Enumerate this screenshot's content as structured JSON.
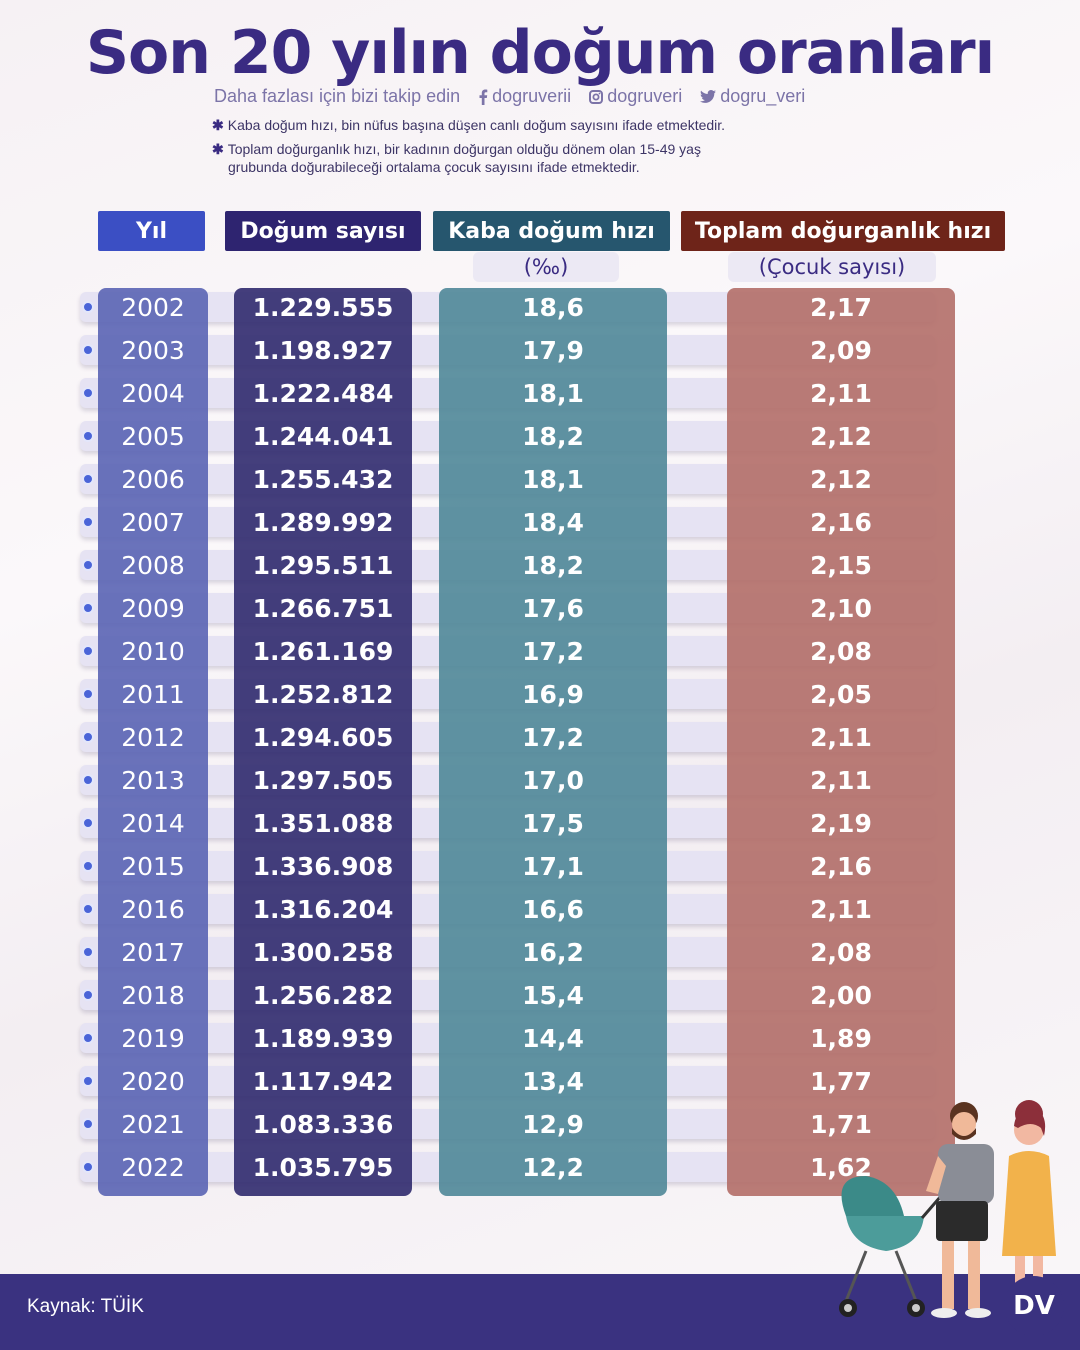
{
  "title": "Son 20 yılın doğum oranları",
  "follow": {
    "text": "Daha fazlası için bizi takip edin",
    "facebook": "dogruverii",
    "instagram": "dogruveri",
    "twitter": "dogru_veri"
  },
  "notes": {
    "star": "✱",
    "note1": "Kaba doğum hızı, bin nüfus başına düşen canlı doğum sayısını ifade etmektedir.",
    "note2_line1": "Toplam doğurganlık hızı, bir kadının doğurgan olduğu dönem olan 15-49 yaş",
    "note2_line2": "grubunda doğurabileceği ortalama çocuk sayısını ifade etmektedir."
  },
  "colors": {
    "year": "#3b4fc4",
    "births": "#2e2470",
    "crude": "#26566e",
    "tfr": "#6e2419",
    "year_col": "#5a64b4",
    "births_col": "#302a6e",
    "crude_col": "#4f8798",
    "tfr_col": "#b26e68"
  },
  "chart_data": {
    "type": "table",
    "title": "Son 20 yılın doğum oranları",
    "columns": [
      "Yıl",
      "Doğum sayısı",
      "Kaba doğum hızı",
      "Toplam doğurganlık hızı"
    ],
    "units": [
      "",
      "",
      "(‰)",
      "(Çocuk sayısı)"
    ],
    "rows": [
      [
        "2002",
        "1.229.555",
        "18,6",
        "2,17"
      ],
      [
        "2003",
        "1.198.927",
        "17,9",
        "2,09"
      ],
      [
        "2004",
        "1.222.484",
        "18,1",
        "2,11"
      ],
      [
        "2005",
        "1.244.041",
        "18,2",
        "2,12"
      ],
      [
        "2006",
        "1.255.432",
        "18,1",
        "2,12"
      ],
      [
        "2007",
        "1.289.992",
        "18,4",
        "2,16"
      ],
      [
        "2008",
        "1.295.511",
        "18,2",
        "2,15"
      ],
      [
        "2009",
        "1.266.751",
        "17,6",
        "2,10"
      ],
      [
        "2010",
        "1.261.169",
        "17,2",
        "2,08"
      ],
      [
        "2011",
        "1.252.812",
        "16,9",
        "2,05"
      ],
      [
        "2012",
        "1.294.605",
        "17,2",
        "2,11"
      ],
      [
        "2013",
        "1.297.505",
        "17,0",
        "2,11"
      ],
      [
        "2014",
        "1.351.088",
        "17,5",
        "2,19"
      ],
      [
        "2015",
        "1.336.908",
        "17,1",
        "2,16"
      ],
      [
        "2016",
        "1.316.204",
        "16,6",
        "2,11"
      ],
      [
        "2017",
        "1.300.258",
        "16,2",
        "2,08"
      ],
      [
        "2018",
        "1.256.282",
        "15,4",
        "2,00"
      ],
      [
        "2019",
        "1.189.939",
        "14,4",
        "1,89"
      ],
      [
        "2020",
        "1.117.942",
        "13,4",
        "1,77"
      ],
      [
        "2021",
        "1.083.336",
        "12,9",
        "1,71"
      ],
      [
        "2022",
        "1.035.795",
        "12,2",
        "1,62"
      ]
    ]
  },
  "source": "Kaynak: TÜİK",
  "logo_text": "DV"
}
